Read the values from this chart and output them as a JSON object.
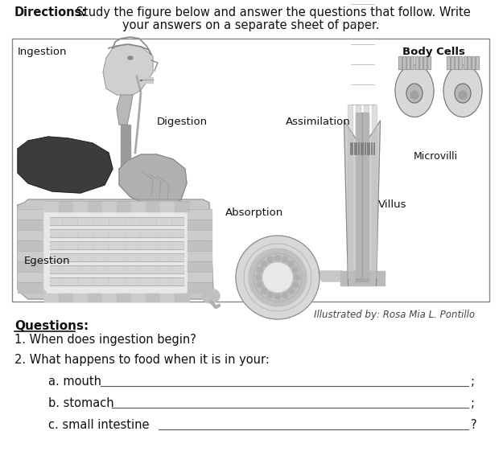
{
  "bg_color": "#ffffff",
  "text_color": "#1a1a1a",
  "font_size_title": 10.5,
  "font_size_body": 10,
  "font_size_label": 9.5,
  "font_size_illustrator": 8.5,
  "illustrator_text": "Illustrated by: Rosa Mia L. Pontillo",
  "questions_bold": "Questions:",
  "question1": "1. When does ingestion begin?",
  "question2": "2. What happens to food when it is in your:",
  "sub_a": "a. mouth ",
  "sub_b": "b. stomach ",
  "sub_c": "c. small intestine ",
  "directions_bold": "Directions:",
  "directions_rest": " Study the figure below and answer the questions that follow. Write",
  "directions_line2": "your answers on a separate sheet of paper.",
  "label_ingestion": "Ingestion",
  "label_digestion": "Digestion",
  "label_assimilation": "Assimilation",
  "label_body_cells": "Body Cells",
  "label_microvilli": "Microvilli",
  "label_villus": "Villus",
  "label_absorption": "Absorption",
  "label_egestion": "Egestion"
}
